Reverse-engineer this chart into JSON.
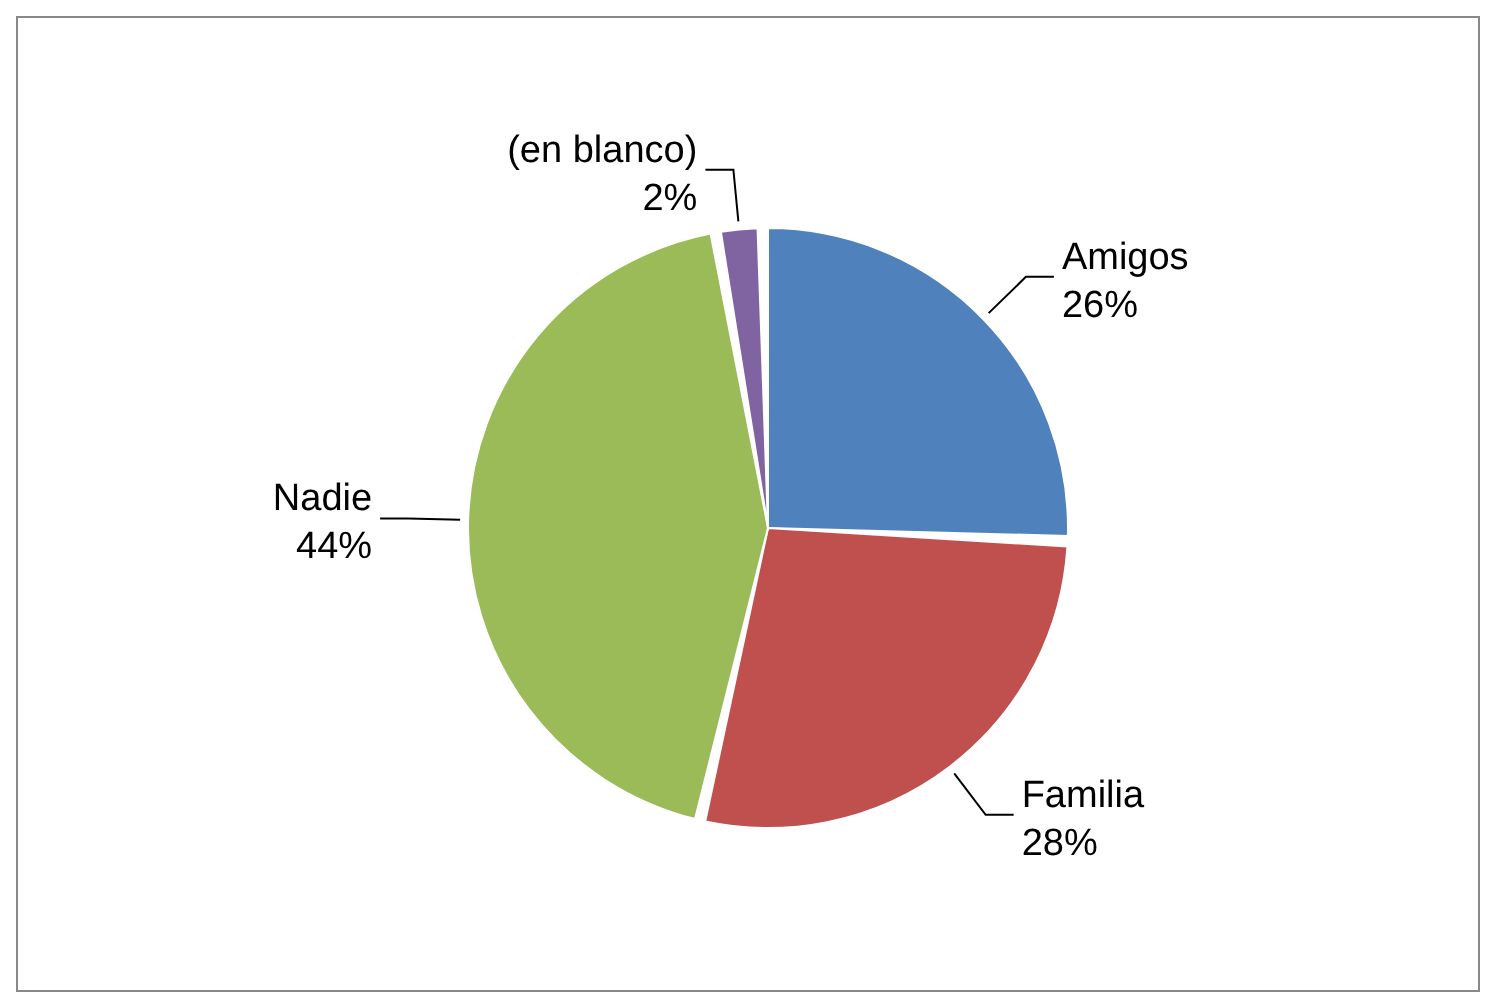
{
  "chart_data": {
    "type": "pie",
    "categories": [
      "Amigos",
      "Familia",
      "Nadie",
      "(en blanco)"
    ],
    "values": [
      26,
      28,
      44,
      2
    ],
    "colors": [
      "#4f81bd",
      "#c0504d",
      "#9bbb59",
      "#8064a2"
    ],
    "value_labels": [
      "26%",
      "28%",
      "44%",
      "2%"
    ]
  }
}
